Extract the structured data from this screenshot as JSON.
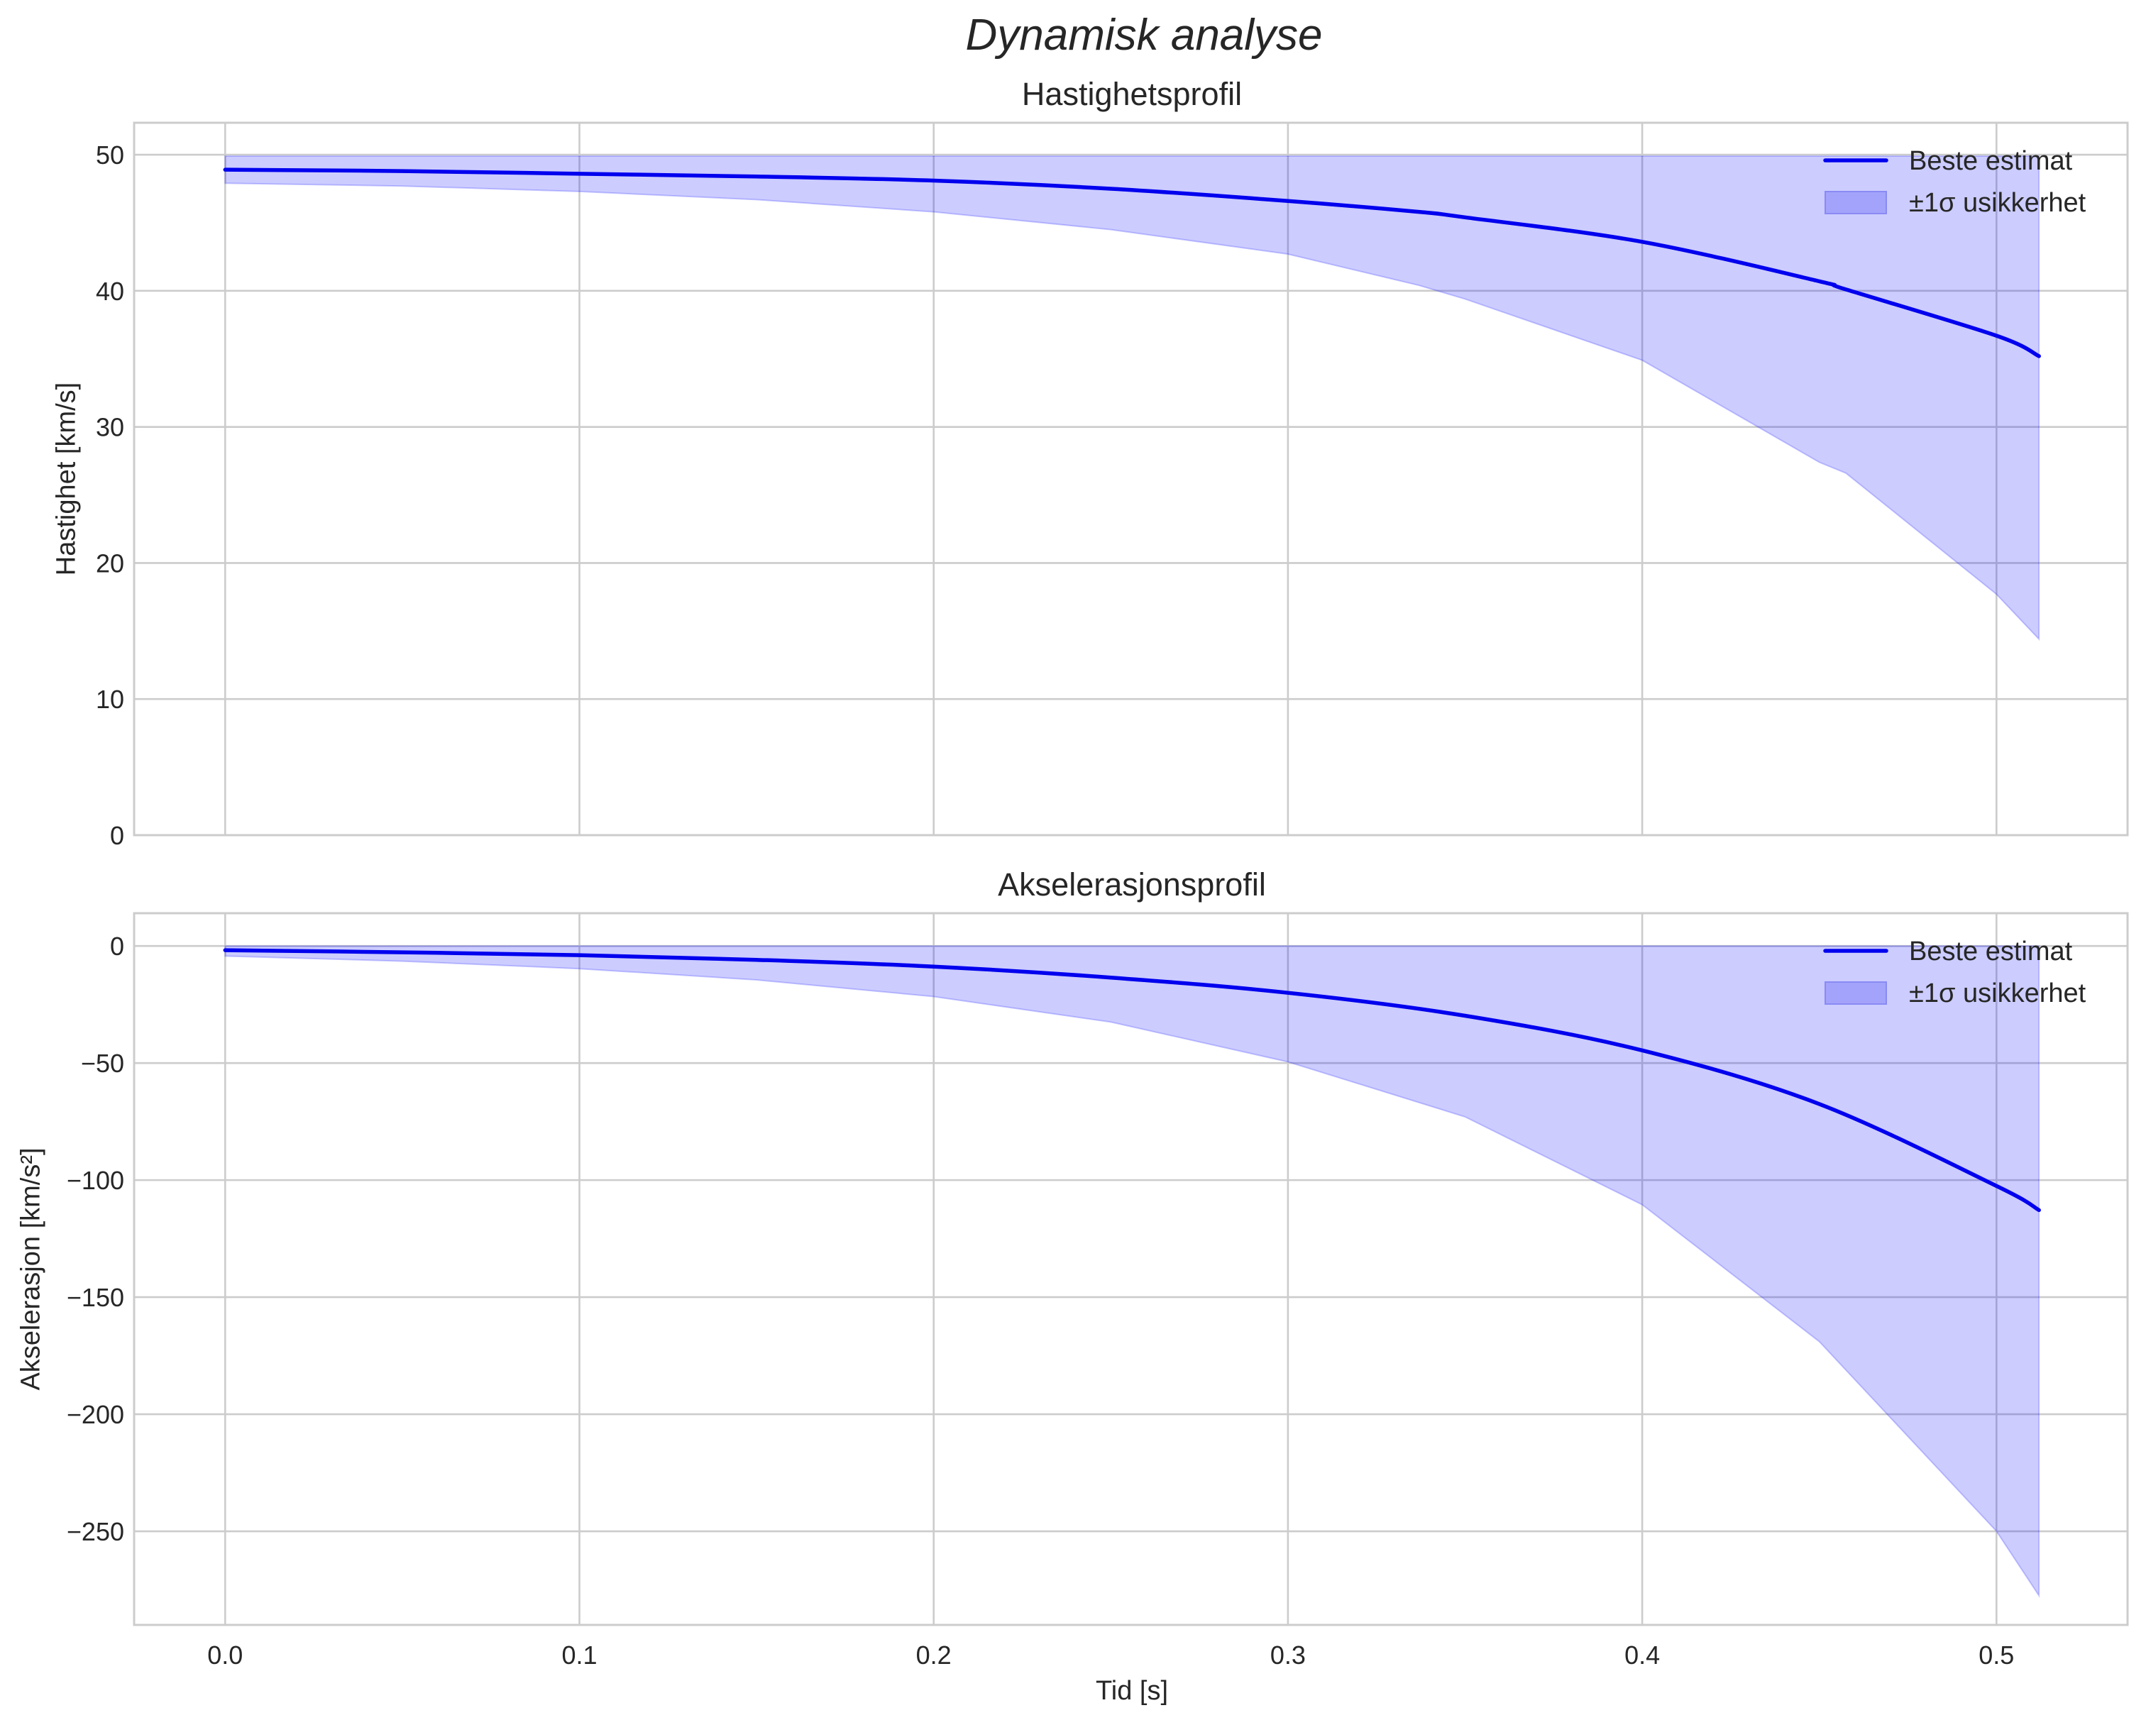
{
  "figure": {
    "title": "Dynamisk analyse",
    "xlabel": "Tid [s]",
    "xlim": [
      -0.0257,
      0.537
    ],
    "xticks": [
      0.0,
      0.1,
      0.2,
      0.3,
      0.4,
      0.5
    ],
    "xtick_labels": [
      "0.0",
      "0.1",
      "0.2",
      "0.3",
      "0.4",
      "0.5"
    ]
  },
  "colors": {
    "line": "#0000ee",
    "band_fill": "#0000ff",
    "band_fill_opacity": 0.2,
    "legend_patch": "#a3a3fb",
    "grid": "#cccccc",
    "text": "#262626"
  },
  "legend": {
    "line_label": "Beste estimat",
    "band_label": "±1σ usikkerhet"
  },
  "chart_data": [
    {
      "type": "line",
      "title": "Hastighetsprofil",
      "xlabel": "",
      "ylabel": "Hastighet [km/s]",
      "xlim": [
        -0.0257,
        0.537
      ],
      "ylim": [
        0,
        52.35
      ],
      "yticks": [
        0,
        10,
        20,
        30,
        40,
        50
      ],
      "ytick_labels": [
        "0",
        "10",
        "20",
        "30",
        "40",
        "50"
      ],
      "grid": true,
      "legend_position": "upper right",
      "x": [
        0.0,
        0.05,
        0.1,
        0.15,
        0.2,
        0.25,
        0.3,
        0.337,
        0.35,
        0.4,
        0.45,
        0.4575,
        0.5,
        0.512
      ],
      "series": [
        {
          "name": "Beste estimat",
          "values": [
            48.9,
            48.8,
            48.6,
            48.4,
            48.1,
            47.5,
            46.6,
            45.8,
            45.4,
            43.6,
            40.7,
            40.1,
            36.7,
            35.2
          ]
        },
        {
          "name": "±1σ usikkerhet (øvre)",
          "values": [
            49.9,
            49.9,
            49.9,
            49.9,
            49.9,
            49.9,
            49.9,
            49.9,
            49.9,
            49.9,
            49.9,
            49.9,
            49.9,
            49.9
          ]
        },
        {
          "name": "±1σ usikkerhet (nedre)",
          "values": [
            47.9,
            47.7,
            47.3,
            46.7,
            45.8,
            44.5,
            42.7,
            40.4,
            39.4,
            34.9,
            27.4,
            26.6,
            17.7,
            14.4
          ]
        }
      ]
    },
    {
      "type": "line",
      "title": "Akselerasjonsprofil",
      "xlabel": "Tid [s]",
      "ylabel": "Akselerasjon [km/s²]",
      "xlim": [
        -0.0257,
        0.537
      ],
      "ylim": [
        -290,
        14
      ],
      "yticks": [
        0,
        -50,
        -100,
        -150,
        -200,
        -250
      ],
      "ytick_labels": [
        "0",
        "−50",
        "−100",
        "−150",
        "−200",
        "−250"
      ],
      "grid": true,
      "legend_position": "upper right",
      "x": [
        0.0,
        0.05,
        0.1,
        0.15,
        0.2,
        0.25,
        0.3,
        0.35,
        0.4,
        0.45,
        0.5,
        0.512
      ],
      "series": [
        {
          "name": "Beste estimat",
          "values": [
            -1.8,
            -2.7,
            -3.9,
            -5.9,
            -8.8,
            -13.5,
            -20.0,
            -29.8,
            -44.6,
            -67.5,
            -102.5,
            -112.8
          ]
        },
        {
          "name": "±1σ usikkerhet (øvre)",
          "values": [
            0,
            0,
            0,
            0,
            0,
            0,
            0,
            0,
            0,
            0,
            0,
            0
          ]
        },
        {
          "name": "±1σ usikkerhet (nedre)",
          "values": [
            -4.3,
            -6.5,
            -9.7,
            -14.5,
            -21.6,
            -32.5,
            -49.5,
            -73.0,
            -110.5,
            -169.0,
            -250.0,
            -277.5
          ]
        }
      ]
    }
  ]
}
